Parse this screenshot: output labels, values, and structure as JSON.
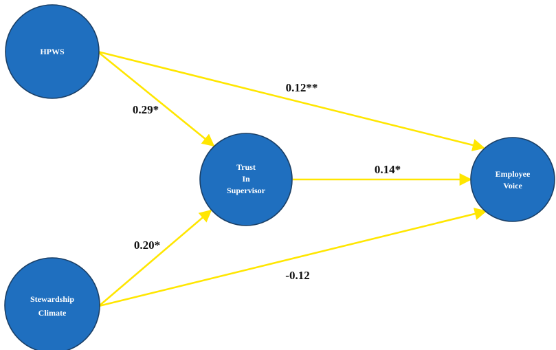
{
  "colors": {
    "node_fill": "#1f6fbf",
    "node_stroke": "#1a3f66",
    "edge": "#ffe600",
    "node_text": "#ffffff",
    "edge_text": "#111111"
  },
  "nodes": {
    "hpws": {
      "lines": [
        "HPWS"
      ]
    },
    "stewardship": {
      "lines": [
        "Stewardship",
        "Climate"
      ]
    },
    "trust": {
      "lines": [
        "Trust",
        "In",
        "Supervisor"
      ]
    },
    "voice": {
      "lines": [
        "Employee",
        "Voice"
      ]
    }
  },
  "edges": {
    "hpws_to_voice": {
      "from": "HPWS",
      "to": "Employee Voice",
      "label": "0.12**"
    },
    "hpws_to_trust": {
      "from": "HPWS",
      "to": "Trust In Supervisor",
      "label": "0.29*"
    },
    "trust_to_voice": {
      "from": "Trust In Supervisor",
      "to": "Employee Voice",
      "label": "0.14*"
    },
    "stewardship_to_trust": {
      "from": "Stewardship Climate",
      "to": "Trust In Supervisor",
      "label": "0.20*"
    },
    "stewardship_to_voice": {
      "from": "Stewardship Climate",
      "to": "Employee Voice",
      "label": "-0.12"
    }
  }
}
